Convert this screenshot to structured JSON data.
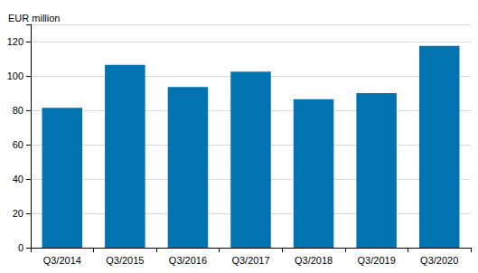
{
  "chart_data": {
    "type": "bar",
    "ylabel": "EUR million",
    "categories": [
      "Q3/2014",
      "Q3/2015",
      "Q3/2016",
      "Q3/2017",
      "Q3/2018",
      "Q3/2019",
      "Q3/2020"
    ],
    "values": [
      81.5,
      106.5,
      93.5,
      102.5,
      86.5,
      90,
      117.5
    ],
    "color": "#0073b0",
    "ylim": [
      0,
      130
    ],
    "yticks": [
      0,
      20,
      40,
      60,
      80,
      100,
      120
    ],
    "grid": true
  }
}
